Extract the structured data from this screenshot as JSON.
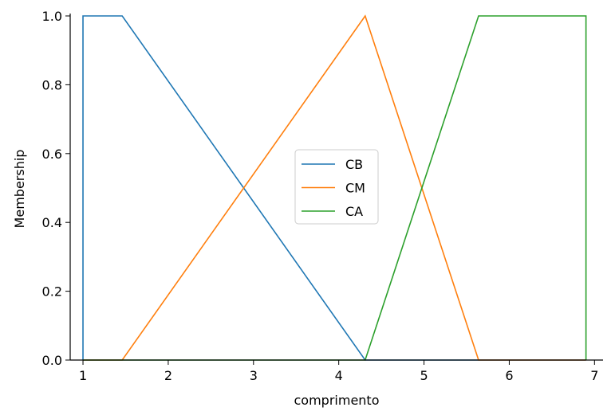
{
  "chart_data": {
    "type": "line",
    "title": "",
    "xlabel": "comprimento",
    "ylabel": "Membership",
    "xlim": [
      0.85,
      7.1
    ],
    "ylim": [
      0,
      1.0
    ],
    "x_ticks": [
      1,
      2,
      3,
      4,
      5,
      6,
      7
    ],
    "x_tick_labels": [
      "1",
      "2",
      "3",
      "4",
      "5",
      "6",
      "7"
    ],
    "y_ticks": [
      0.0,
      0.2,
      0.4,
      0.6,
      0.8,
      1.0
    ],
    "y_tick_labels": [
      "0.0",
      "0.2",
      "0.4",
      "0.6",
      "0.8",
      "1.0"
    ],
    "grid": false,
    "legend_position": "center",
    "series": [
      {
        "name": "CB",
        "color": "#1f77b4",
        "x": [
          1.0,
          1.0,
          1.46,
          4.31,
          6.9
        ],
        "y": [
          0.0,
          1.0,
          1.0,
          0.0,
          0.0
        ]
      },
      {
        "name": "CM",
        "color": "#ff7f0e",
        "x": [
          1.0,
          1.46,
          4.31,
          5.64,
          6.9
        ],
        "y": [
          0.0,
          0.0,
          1.0,
          0.0,
          0.0
        ]
      },
      {
        "name": "CA",
        "color": "#2ca02c",
        "x": [
          1.0,
          4.31,
          5.64,
          6.9,
          6.9
        ],
        "y": [
          0.0,
          0.0,
          1.0,
          1.0,
          0.0
        ]
      }
    ]
  }
}
